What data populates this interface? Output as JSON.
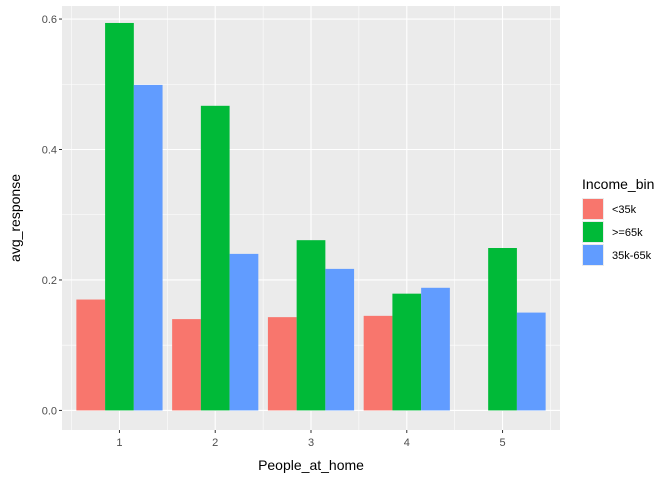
{
  "chart_data": {
    "type": "bar",
    "x": [
      1,
      2,
      3,
      4,
      5
    ],
    "categories": [
      "1",
      "2",
      "3",
      "4",
      "5"
    ],
    "series": [
      {
        "name": "<35k",
        "color": "#F8766D",
        "values": [
          0.17,
          0.14,
          0.143,
          0.145,
          null
        ]
      },
      {
        "name": ">=65k",
        "color": "#00BA38",
        "values": [
          0.594,
          0.467,
          0.261,
          0.179,
          0.249
        ]
      },
      {
        "name": "35k-65k",
        "color": "#619CFF",
        "values": [
          0.499,
          0.24,
          0.217,
          0.188,
          0.15
        ]
      }
    ],
    "xlabel": "People_at_home",
    "ylabel": "avg_response",
    "ylim": [
      -0.03,
      0.62
    ],
    "yticks": [
      0.0,
      0.2,
      0.4,
      0.6
    ],
    "ytick_labels": [
      "0.0",
      "0.2",
      "0.4",
      "0.6"
    ],
    "grid": true,
    "legend": {
      "title": "Income_bin",
      "placement": "right"
    },
    "panel_color": "#EBEBEB",
    "grid_color": "#FFFFFF"
  }
}
